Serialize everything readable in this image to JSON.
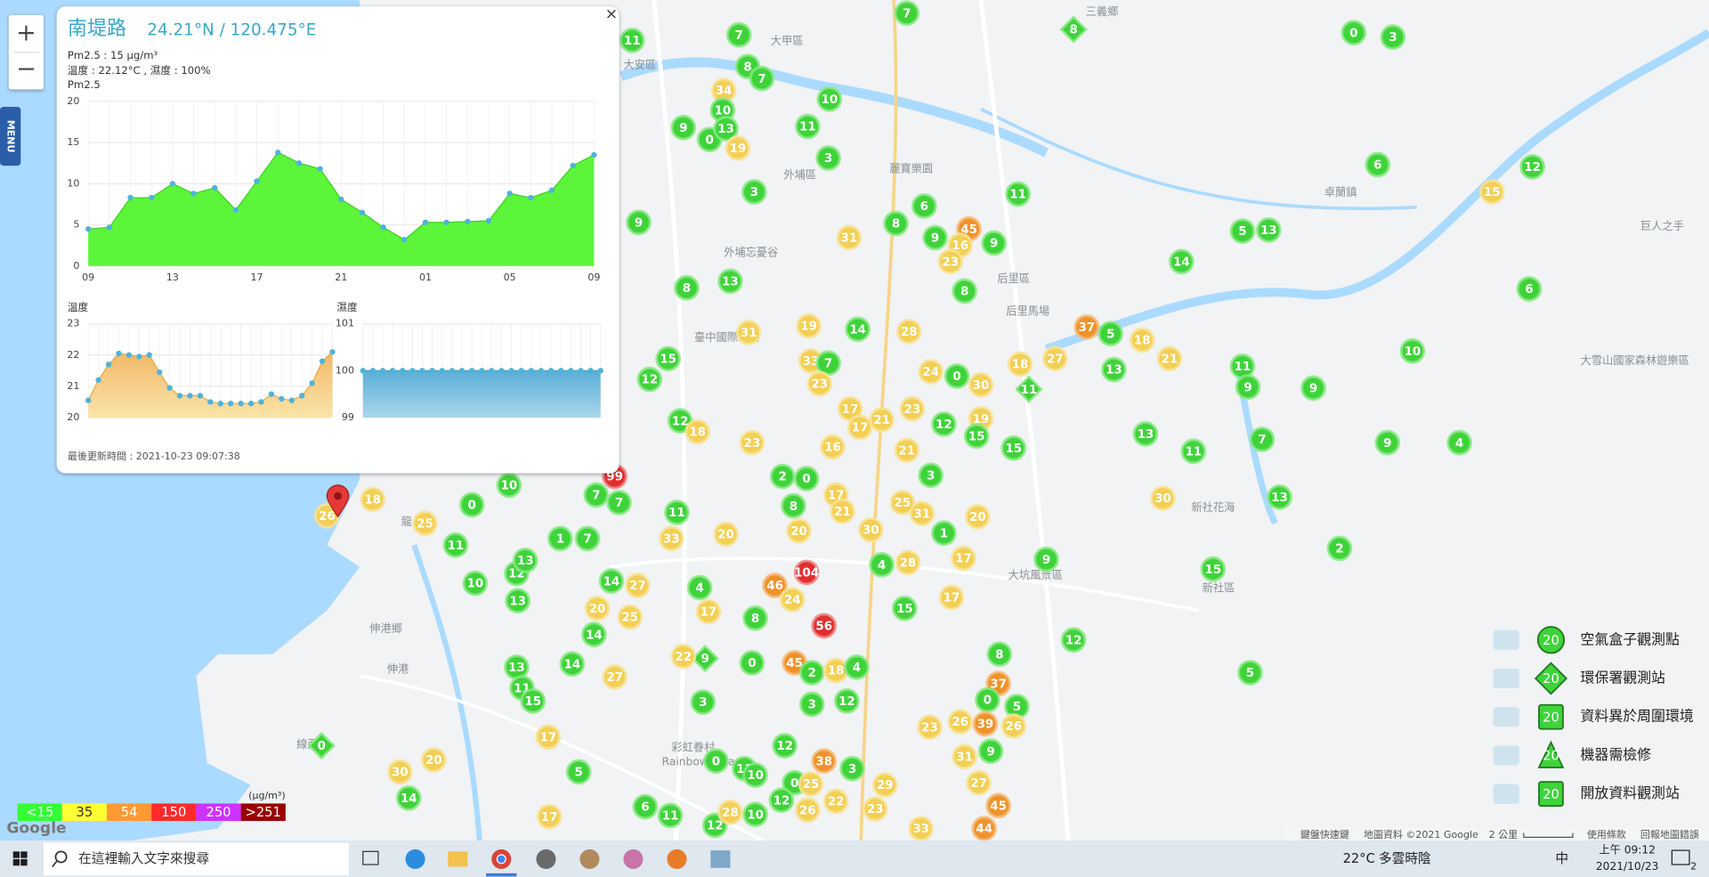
{
  "popup": {
    "title": "南堤路",
    "coords": "24.21°N / 120.475°E",
    "close": "×",
    "pm_line": "Pm2.5 : 15 μg/m³",
    "weather_line": "溫度 : 22.12°C , 濕度 : 100%",
    "updated": "最後更新時間 : 2021-10-23 09:07:38",
    "pm25": {
      "label": "Pm2.5",
      "x": [
        "09",
        null,
        null,
        null,
        "13",
        null,
        null,
        null,
        "17",
        null,
        null,
        null,
        "21",
        null,
        null,
        null,
        "01",
        null,
        null,
        null,
        "05",
        null,
        null,
        null,
        "09"
      ],
      "values": [
        4.5,
        4.7,
        8.3,
        8.3,
        10,
        8.8,
        9.5,
        6.8,
        10.3,
        13.8,
        12.5,
        11.8,
        8.1,
        6.5,
        4.7,
        3.2,
        5.3,
        5.3,
        5.4,
        5.5,
        8.8,
        8.3,
        9.2,
        12.2,
        13.5
      ],
      "ylim": [
        0,
        20
      ],
      "yticks": [
        0,
        5,
        10,
        15,
        20
      ]
    },
    "temperature": {
      "label": "溫度",
      "values": [
        20.55,
        21.2,
        21.7,
        22.05,
        22.0,
        21.95,
        22.0,
        21.45,
        20.95,
        20.7,
        20.7,
        20.7,
        20.5,
        20.45,
        20.45,
        20.45,
        20.45,
        20.5,
        20.75,
        20.6,
        20.55,
        20.7,
        21.1,
        21.8,
        22.1
      ],
      "ylim": [
        20,
        23
      ],
      "yticks": [
        20,
        21,
        22,
        23
      ]
    },
    "humidity": {
      "label": "濕度",
      "values": [
        100,
        100,
        100,
        100,
        100,
        100,
        100,
        100,
        100,
        100,
        100,
        100,
        100,
        100,
        100,
        100,
        100,
        100,
        100,
        100,
        100,
        100,
        100,
        100,
        100
      ],
      "ylim": [
        99,
        101
      ],
      "yticks": [
        99,
        100,
        101
      ]
    }
  },
  "controls": {
    "zoom_in": "+",
    "zoom_out": "−",
    "menu": "MENU"
  },
  "map": {
    "markers": [
      11,
      7,
      7,
      8,
      0,
      3,
      8,
      7,
      34,
      10,
      10,
      9,
      0,
      13,
      19,
      11,
      3,
      3,
      6,
      11,
      6,
      8,
      45,
      9,
      16,
      23,
      9,
      31,
      9,
      12,
      15,
      5,
      13,
      14,
      8,
      13,
      8,
      6,
      19,
      14,
      28,
      31,
      37,
      5,
      18,
      21,
      27,
      18,
      15,
      33,
      7,
      13,
      10,
      11,
      12,
      23,
      24,
      0,
      30,
      11,
      9,
      9,
      17,
      21,
      17,
      23,
      12,
      19,
      15,
      12,
      18,
      23,
      16,
      21,
      15,
      13,
      11,
      7,
      9,
      4,
      99,
      3,
      2,
      0,
      7,
      7,
      13,
      30,
      10,
      0,
      18,
      26,
      25,
      11,
      1,
      7,
      11,
      33,
      20,
      8,
      20,
      17,
      21,
      30,
      25,
      31,
      1,
      20,
      17,
      9,
      2,
      15,
      104,
      46,
      4,
      28,
      12,
      13,
      10,
      13,
      14,
      4,
      27,
      24,
      56,
      20,
      25,
      17,
      8,
      15,
      17,
      12,
      14,
      14,
      27,
      13,
      11,
      15,
      9,
      22,
      0,
      45,
      2,
      18,
      4,
      8,
      37,
      0,
      5,
      26,
      39,
      23,
      26,
      5,
      0,
      17,
      5,
      20,
      30,
      14,
      38,
      3,
      11,
      0,
      12,
      10,
      0,
      25,
      29,
      26,
      45,
      44,
      33,
      17,
      6,
      11,
      12,
      28,
      10,
      12,
      22,
      23,
      31,
      27,
      9,
      3,
      3,
      12
    ],
    "places": [
      "大甲區",
      "大安區",
      "外埔區",
      "麗寶樂園",
      "外埔忘憂谷",
      "后里區",
      "后里馬場",
      "三義鄉",
      "卓蘭鎮",
      "巨人之手",
      "大雪山國家森林遊樂區",
      "新社花海",
      "新社區",
      "臺中國際機場",
      "大坑風景區",
      "伸港鄉",
      "伸港",
      "線西",
      "彩虹眷村",
      "Rainbow Village",
      "龍"
    ]
  },
  "pm_scale": {
    "unit": "(μg/m³)",
    "levels": [
      "<15",
      "35",
      "54",
      "150",
      "250",
      ">251"
    ]
  },
  "legend": {
    "items": [
      {
        "label": "空氣盒子觀測點",
        "sample": 20
      },
      {
        "label": "環保署觀測站",
        "sample": 20
      },
      {
        "label": "資料異於周圍環境",
        "sample": 20
      },
      {
        "label": "機器需檢修",
        "sample": 20
      },
      {
        "label": "開放資料觀測站",
        "sample": 20
      }
    ]
  },
  "footer": {
    "logo": "Google",
    "shortcuts": "鍵盤快速鍵",
    "attribution": "地圖資料 ©2021 Google",
    "scale": "2 公里",
    "terms": "使用條款",
    "report": "回報地圖錯誤"
  },
  "taskbar": {
    "search": "在這裡輸入文字來搜尋",
    "temperature": "22°C",
    "weather": "多雲時陰",
    "ime": "中",
    "time": "上午 09:12",
    "date": "2021/10/23",
    "notifications": "2"
  }
}
